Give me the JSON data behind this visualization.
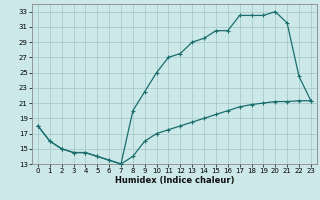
{
  "title": "",
  "xlabel": "Humidex (Indice chaleur)",
  "ylabel": "",
  "bg_color": "#cce8e8",
  "grid_color": "#aacccc",
  "line_color": "#1a6e6e",
  "xlim": [
    -0.5,
    23.5
  ],
  "ylim": [
    13,
    34
  ],
  "xticks": [
    0,
    1,
    2,
    3,
    4,
    5,
    6,
    7,
    8,
    9,
    10,
    11,
    12,
    13,
    14,
    15,
    16,
    17,
    18,
    19,
    20,
    21,
    22,
    23
  ],
  "yticks": [
    13,
    15,
    17,
    19,
    21,
    23,
    25,
    27,
    29,
    31,
    33
  ],
  "line1_x": [
    0,
    1,
    2,
    3,
    4,
    5,
    6,
    7,
    8,
    9,
    10,
    11,
    12,
    13,
    14,
    15,
    16,
    17,
    18,
    19,
    20,
    21,
    22,
    23
  ],
  "line1_y": [
    18,
    16,
    15,
    14.5,
    14.5,
    14,
    13.5,
    13,
    14,
    16,
    17,
    17.5,
    18,
    18.5,
    19,
    19.5,
    20,
    20.5,
    20.8,
    21,
    21.2,
    21.2,
    21.3,
    21.3
  ],
  "line2_x": [
    0,
    1,
    2,
    3,
    4,
    5,
    6,
    7,
    8,
    9,
    10,
    11,
    12,
    13,
    14,
    15,
    16,
    17,
    18,
    19,
    20,
    21,
    22,
    23
  ],
  "line2_y": [
    18,
    16,
    15,
    14.5,
    14.5,
    14,
    13.5,
    13,
    20,
    22.5,
    25,
    27,
    27.5,
    29,
    29.5,
    30.5,
    30.5,
    32.5,
    32.5,
    32.5,
    33,
    31.5,
    24.5,
    21.3
  ],
  "marker": "+",
  "markersize": 3,
  "linewidth": 0.9
}
